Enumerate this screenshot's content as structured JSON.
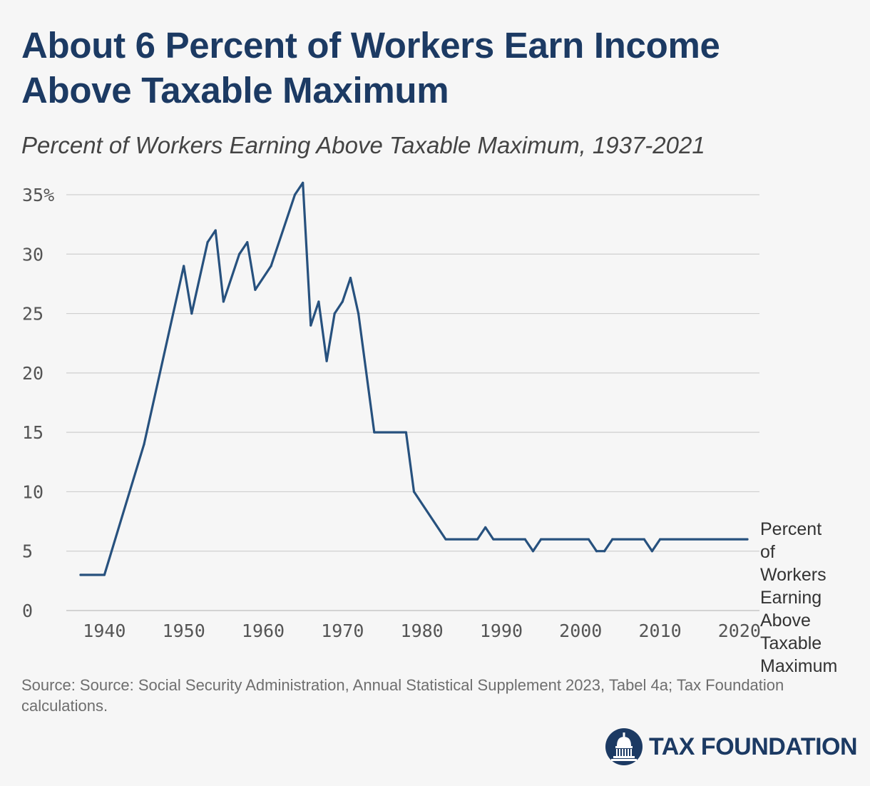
{
  "header": {
    "title": "About 6 Percent of Workers Earn Income Above Taxable Maximum",
    "subtitle": "Percent of Workers Earning Above Taxable Maximum, 1937-2021"
  },
  "footer": {
    "source": "Source: Source: Social Security Administration, Annual Statistical Supplement 2023, Tabel 4a; Tax Foundation calculations.",
    "logo_text": "TAX FOUNDATION"
  },
  "colors": {
    "brand": "#1c3a63",
    "line": "#27517e",
    "grid": "#cfcfcf",
    "tick": "#555555",
    "background": "#f6f6f6"
  },
  "chart_data": {
    "type": "line",
    "xlim": [
      1937,
      2021
    ],
    "ylim": [
      0,
      35
    ],
    "grid": true,
    "x_ticks": [
      1940,
      1950,
      1960,
      1970,
      1980,
      1990,
      2000,
      2010,
      2020
    ],
    "y_ticks": [
      0,
      5,
      10,
      15,
      20,
      25,
      30,
      35
    ],
    "y_tick_labels": [
      "0",
      "5",
      "10",
      "15",
      "20",
      "25",
      "30",
      "35%"
    ],
    "series": [
      {
        "name": "Percent of Workers Earning Above Taxable Maximum",
        "label_lines": [
          "Percent",
          "of",
          "Workers",
          "Earning",
          "Above",
          "Taxable",
          "Maximum"
        ],
        "x": [
          1937,
          1940,
          1945,
          1950,
          1951,
          1953,
          1954,
          1955,
          1957,
          1958,
          1959,
          1961,
          1964,
          1965,
          1966,
          1967,
          1968,
          1969,
          1970,
          1971,
          1972,
          1974,
          1978,
          1979,
          1983,
          1987,
          1988,
          1989,
          1993,
          1994,
          1995,
          2001,
          2002,
          2003,
          2004,
          2008,
          2009,
          2010,
          2021
        ],
        "y": [
          3,
          3,
          14,
          29,
          25,
          31,
          32,
          26,
          30,
          31,
          27,
          29,
          35,
          36,
          24,
          26,
          21,
          25,
          26,
          28,
          25,
          15,
          15,
          10,
          6,
          6,
          7,
          6,
          6,
          5,
          6,
          6,
          5,
          5,
          6,
          6,
          5,
          6,
          6
        ]
      }
    ]
  }
}
